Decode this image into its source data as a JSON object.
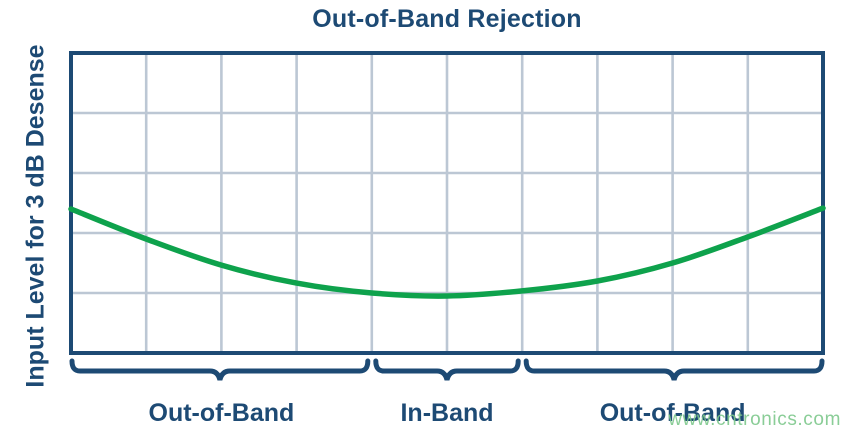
{
  "title": "Out-of-Band Rejection",
  "ylabel": "Input Level for 3 dB Desense",
  "watermark": "www.cntronics.com",
  "colors": {
    "navy": "#1d4a74",
    "curve_green": "#0ea24c",
    "grid": "#bcc7d4",
    "watermark_green": "#7dc88c"
  },
  "chart_data": {
    "type": "line",
    "title": "Out-of-Band Rejection",
    "xlabel": "",
    "ylabel": "Input Level for 3 dB Desense",
    "x_axis": {
      "tick_labels": [],
      "note": "unlabeled frequency axis"
    },
    "y_axis": {
      "tick_labels": [],
      "note": "unlabeled input-level axis"
    },
    "grid": {
      "on": true,
      "cols": 10,
      "rows": 5
    },
    "legend": null,
    "series": [
      {
        "name": "Input level for 3 dB desense",
        "color": "#0ea24c",
        "shape": "u-curve (lowest in-band, rising out-of-band)",
        "x_frac": [
          0.0,
          0.1,
          0.2,
          0.3,
          0.4,
          0.5,
          0.6,
          0.7,
          0.8,
          0.9,
          1.0
        ],
        "y_frac": [
          0.52,
          0.62,
          0.707,
          0.767,
          0.8,
          0.81,
          0.793,
          0.76,
          0.7,
          0.613,
          0.517
        ]
      }
    ],
    "regions": [
      {
        "label": "Out-of-Band",
        "x_start_frac": 0.0,
        "x_end_frac": 0.4
      },
      {
        "label": "In-Band",
        "x_start_frac": 0.4,
        "x_end_frac": 0.6
      },
      {
        "label": "Out-of-Band",
        "x_start_frac": 0.6,
        "x_end_frac": 1.0
      }
    ]
  }
}
